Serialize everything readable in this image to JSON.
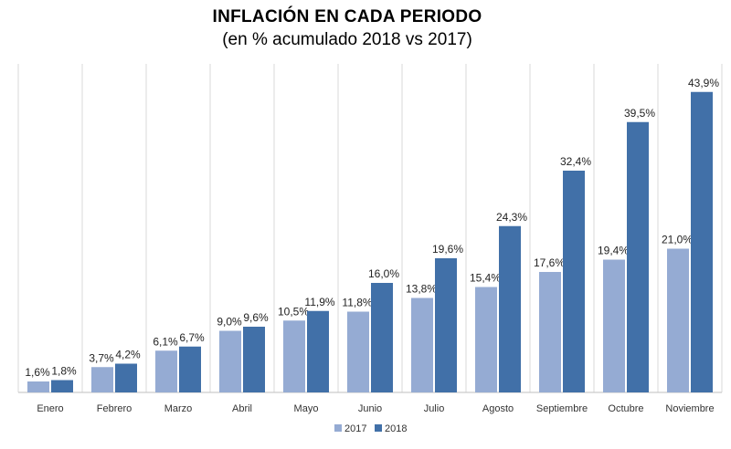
{
  "chart_data": {
    "type": "bar",
    "title": "INFLACIÓN  EN CADA  PERIODO",
    "subtitle": "(en % acumulado 2018 vs 2017)",
    "categories": [
      "Enero",
      "Febrero",
      "Marzo",
      "Abril",
      "Mayo",
      "Junio",
      "Julio",
      "Agosto",
      "Septiembre",
      "Octubre",
      "Noviembre"
    ],
    "series": [
      {
        "name": "2017",
        "color": "#95abd3",
        "values": [
          1.6,
          3.7,
          6.1,
          9.0,
          10.5,
          11.8,
          13.8,
          15.4,
          17.6,
          19.4,
          21.0
        ],
        "labels": [
          "1,6%",
          "3,7%",
          "6,1%",
          "9,0%",
          "10,5%",
          "11,8%",
          "13,8%",
          "15,4%",
          "17,6%",
          "19,4%",
          "21,0%"
        ]
      },
      {
        "name": "2018",
        "color": "#4170a8",
        "values": [
          1.8,
          4.2,
          6.7,
          9.6,
          11.9,
          16.0,
          19.6,
          24.3,
          32.4,
          39.5,
          43.9
        ],
        "labels": [
          "1,8%",
          "4,2%",
          "6,7%",
          "9,6%",
          "11,9%",
          "16,0%",
          "19,6%",
          "24,3%",
          "32,4%",
          "39,5%",
          "43,9%"
        ]
      }
    ],
    "ylim": [
      0,
      48
    ],
    "legend": "bottom",
    "grid": "vertical separators"
  }
}
